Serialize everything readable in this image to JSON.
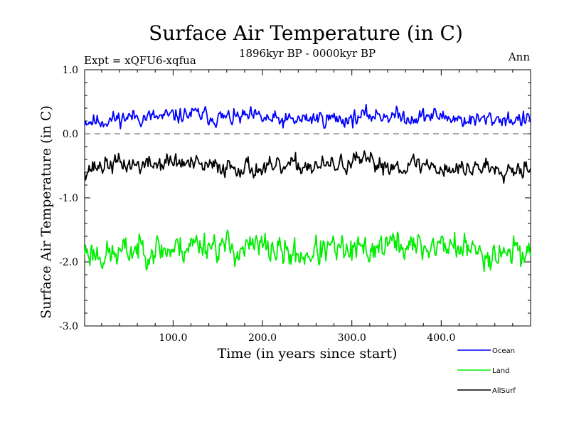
{
  "chart_data": {
    "type": "line",
    "title": "Surface Air Temperature (in C)",
    "subtitle": "1896kyr BP - 0000kyr BP",
    "expt_label": "Expt = xQFU6-xqfua",
    "season_label": "Ann",
    "xlabel": "Time (in years since start)",
    "ylabel": "Surface Air Temperature (in C)",
    "xlim": [
      1,
      500
    ],
    "ylim": [
      -3.0,
      1.0
    ],
    "xticks": [
      100,
      200,
      300,
      400
    ],
    "xtick_labels": [
      "100.0",
      "200.0",
      "300.0",
      "400.0"
    ],
    "yticks": [
      1.0,
      0.0,
      -1.0,
      -2.0,
      -3.0
    ],
    "ytick_labels": [
      "1.0",
      "0.0",
      "-1.0",
      "-2.0",
      "-3.0"
    ],
    "reference_line": 0.0,
    "series": [
      {
        "name": "Ocean",
        "color": "#0000ff",
        "baseline": 0.25,
        "amplitude": 0.13,
        "seed": 11
      },
      {
        "name": "Land",
        "color": "#00ee00",
        "baseline": -1.8,
        "amplitude": 0.24,
        "seed": 23
      },
      {
        "name": "AllSurf",
        "color": "#000000",
        "baseline": -0.5,
        "amplitude": 0.15,
        "seed": 37
      }
    ],
    "legend_position": "bottom-right"
  }
}
